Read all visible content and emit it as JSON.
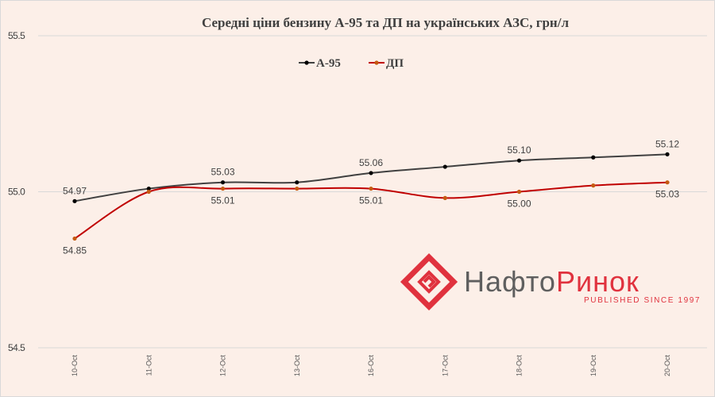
{
  "chart_data": {
    "type": "line",
    "title": "Середні ціни бензину А-95 та ДП на українських АЗС, грн/л",
    "xlabel": "",
    "ylabel": "",
    "categories": [
      "10-Oct",
      "11-Oct",
      "12-Oct",
      "13-Oct",
      "16-Oct",
      "17-Oct",
      "18-Oct",
      "19-Oct",
      "20-Oct"
    ],
    "ylim": [
      54.5,
      55.5
    ],
    "yticks": [
      "54.5",
      "55.0",
      "55.5"
    ],
    "ytick_values": [
      54.5,
      55.0,
      55.5
    ],
    "grid": true,
    "legend_position": "top-center",
    "series": [
      {
        "name": "А-95",
        "color": "#404040",
        "marker_color": "#000000",
        "values": [
          54.97,
          55.01,
          55.03,
          55.03,
          55.06,
          55.08,
          55.1,
          55.11,
          55.12
        ],
        "labels": [
          "54.97",
          null,
          "55.03",
          null,
          "55.06",
          null,
          "55.10",
          null,
          "55.12"
        ]
      },
      {
        "name": "ДП",
        "color": "#c00000",
        "marker_color": "#c55a11",
        "values": [
          54.85,
          55.0,
          55.01,
          55.01,
          55.01,
          54.98,
          55.0,
          55.02,
          55.03
        ],
        "labels": [
          "54.85",
          null,
          "55.01",
          null,
          "55.01",
          null,
          "55.00",
          null,
          "55.03"
        ]
      }
    ]
  },
  "logo": {
    "name_part1": "Нафто",
    "name_part2": "Ринок",
    "tagline": "PUBLISHED SINCE 1997",
    "gray": "#5f5f5f",
    "red": "#e0323e"
  }
}
